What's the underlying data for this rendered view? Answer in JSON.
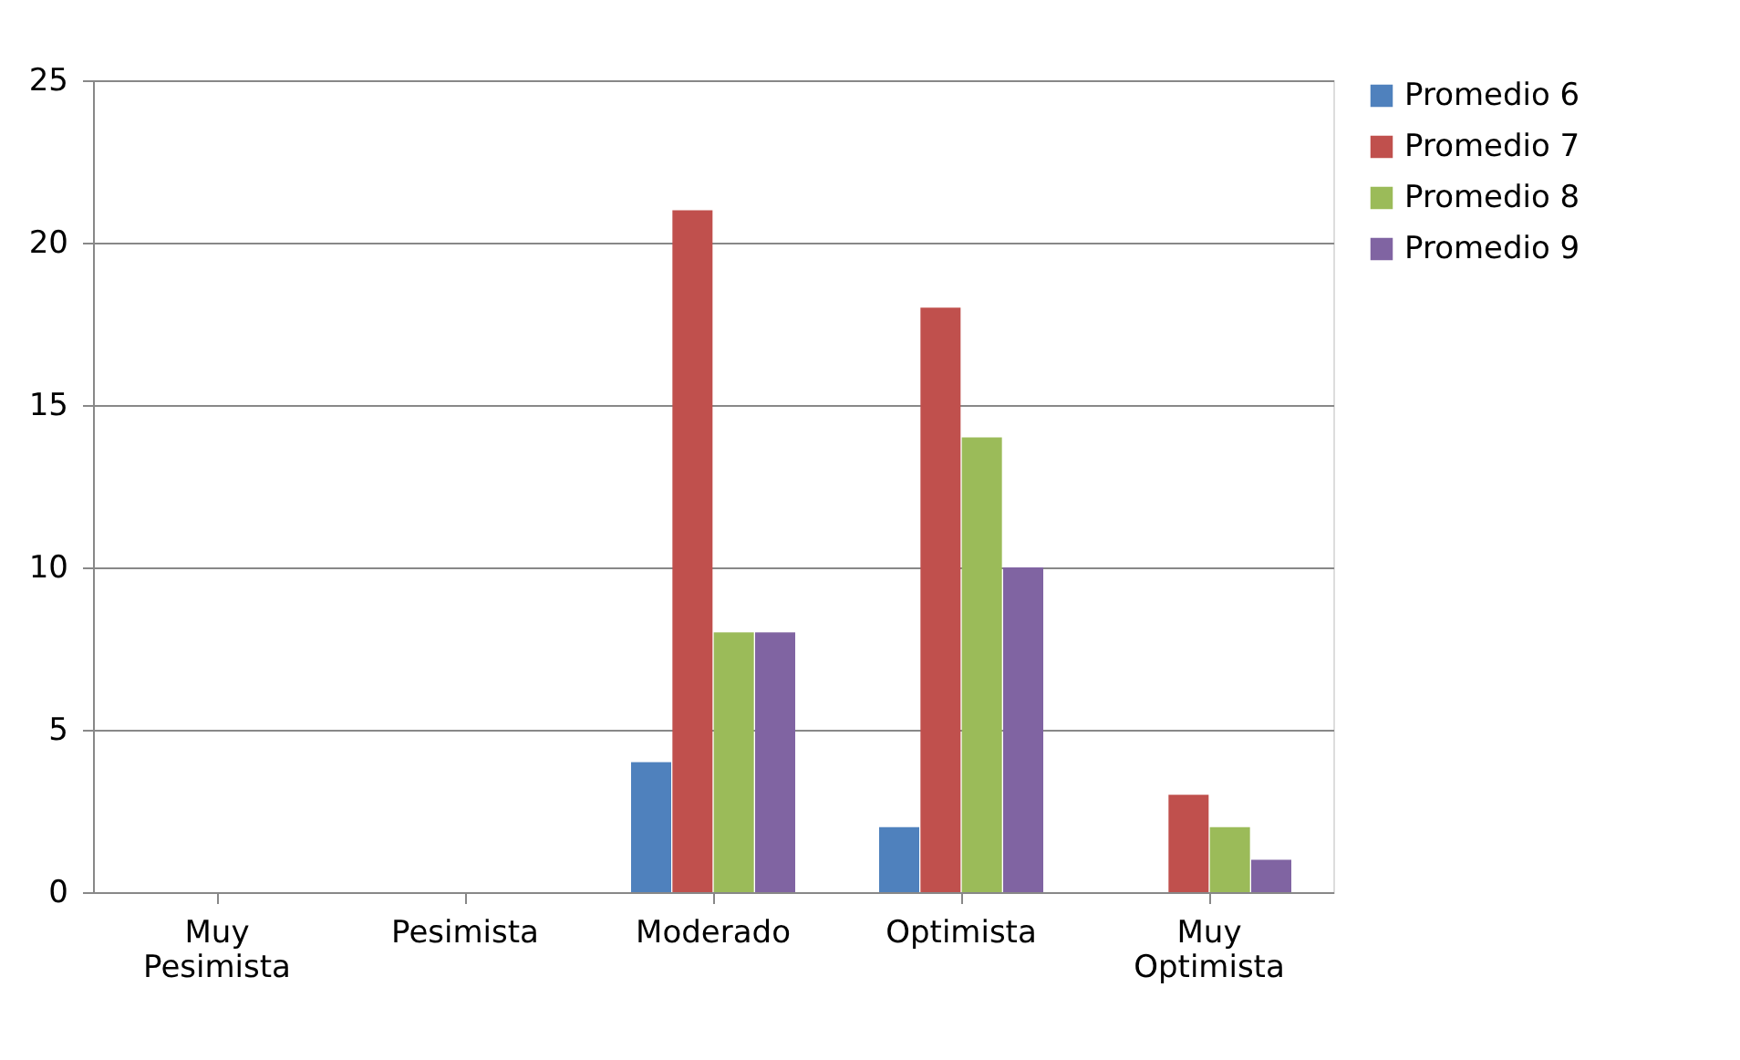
{
  "chart_data": {
    "type": "bar",
    "categories": [
      "Muy Pesimista",
      "Pesimista",
      "Moderado",
      "Optimista",
      "Muy Optimista"
    ],
    "series": [
      {
        "name": "Promedio 6",
        "color": "#4f81bd",
        "values": [
          0,
          0,
          4,
          2,
          0
        ]
      },
      {
        "name": "Promedio 7",
        "color": "#c0504d",
        "values": [
          0,
          0,
          21,
          18,
          3
        ]
      },
      {
        "name": "Promedio 8",
        "color": "#9bbb59",
        "values": [
          0,
          0,
          8,
          14,
          2
        ]
      },
      {
        "name": "Promedio 9",
        "color": "#8064a2",
        "values": [
          0,
          0,
          8,
          10,
          1
        ]
      }
    ],
    "ylim": [
      0,
      25
    ],
    "yticks": [
      0,
      5,
      10,
      15,
      20,
      25
    ],
    "grid": "y",
    "legend": "right"
  }
}
